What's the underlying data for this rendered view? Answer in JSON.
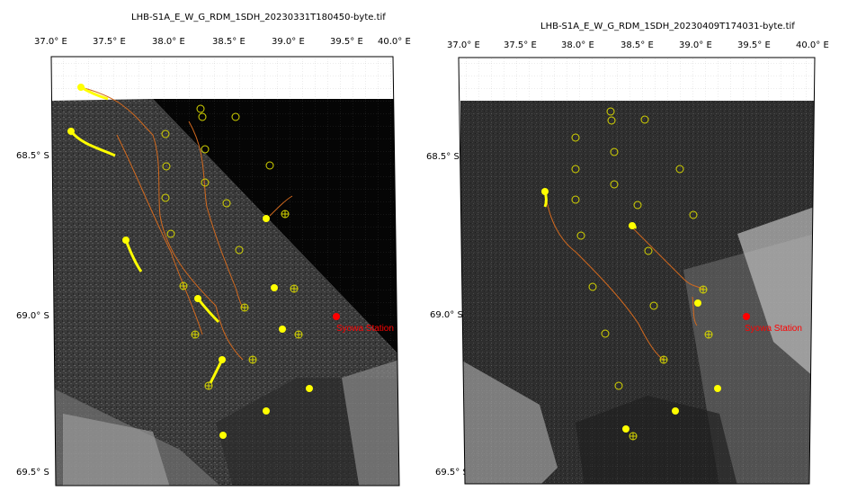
{
  "maps": [
    {
      "title": "LHB-S1A_E_W_G_RDM_1SDH_20230331T180450-byte.tif",
      "lon_labels": [
        "37.0° E",
        "37.5° E",
        "38.0° E",
        "38.5° E",
        "39.0° E",
        "39.5° E",
        "40.0° E"
      ],
      "lat_labels": [
        "68.5° S",
        "69.0° S",
        "69.5° S"
      ],
      "station_label": "Syowa Station"
    },
    {
      "title": "LHB-S1A_E_W_G_RDM_1SDH_20230409T174031-byte.tif",
      "lon_labels": [
        "37.0° E",
        "37.5° E",
        "38.0° E",
        "38.5° E",
        "39.0° E",
        "39.5° E",
        "40.0° E"
      ],
      "lat_labels": [
        "68.5° S",
        "69.0° S",
        "69.5° S"
      ],
      "station_label": "Syowa Station"
    }
  ],
  "colors": {
    "track": "#d2691e",
    "buoy": "#ffff00",
    "station": "#ff0000",
    "ice": "#3c3c3c",
    "ocean": "#000000"
  }
}
